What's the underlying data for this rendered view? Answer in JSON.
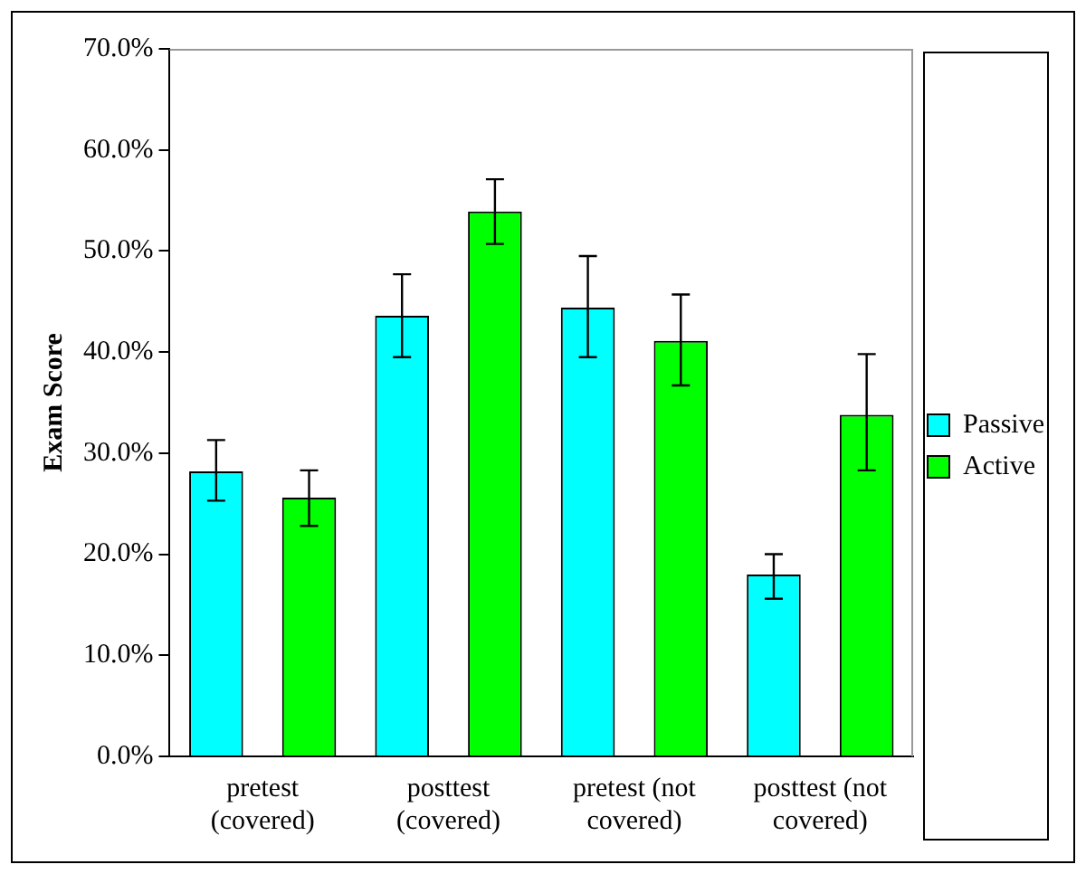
{
  "chart_data": {
    "type": "bar",
    "ylabel": "Exam Score",
    "categories": [
      "pretest (covered)",
      "posttest (covered)",
      "pretest (not covered)",
      "posttest (not covered)"
    ],
    "series": [
      {
        "name": "Passive",
        "color": "#00ffff",
        "values": [
          28.2,
          43.6,
          44.4,
          18.0
        ],
        "errors": [
          [
            25.3,
            31.3
          ],
          [
            39.5,
            47.7
          ],
          [
            39.5,
            49.5
          ],
          [
            15.6,
            20.0
          ]
        ]
      },
      {
        "name": "Active",
        "color": "#00ff00",
        "values": [
          25.6,
          53.9,
          41.1,
          33.8
        ],
        "errors": [
          [
            22.8,
            28.3
          ],
          [
            50.7,
            57.1
          ],
          [
            36.7,
            45.7
          ],
          [
            28.3,
            39.8
          ]
        ]
      }
    ],
    "ylim": [
      0,
      70
    ],
    "yticks": [
      {
        "value": 0,
        "label": "0.0%"
      },
      {
        "value": 10,
        "label": "10.0%"
      },
      {
        "value": 20,
        "label": "20.0%"
      },
      {
        "value": 30,
        "label": "30.0%"
      },
      {
        "value": 40,
        "label": "40.0%"
      },
      {
        "value": 50,
        "label": "50.0%"
      },
      {
        "value": 60,
        "label": "60.0%"
      },
      {
        "value": 70,
        "label": "70.0%"
      }
    ],
    "grid": false,
    "legend": "right"
  }
}
